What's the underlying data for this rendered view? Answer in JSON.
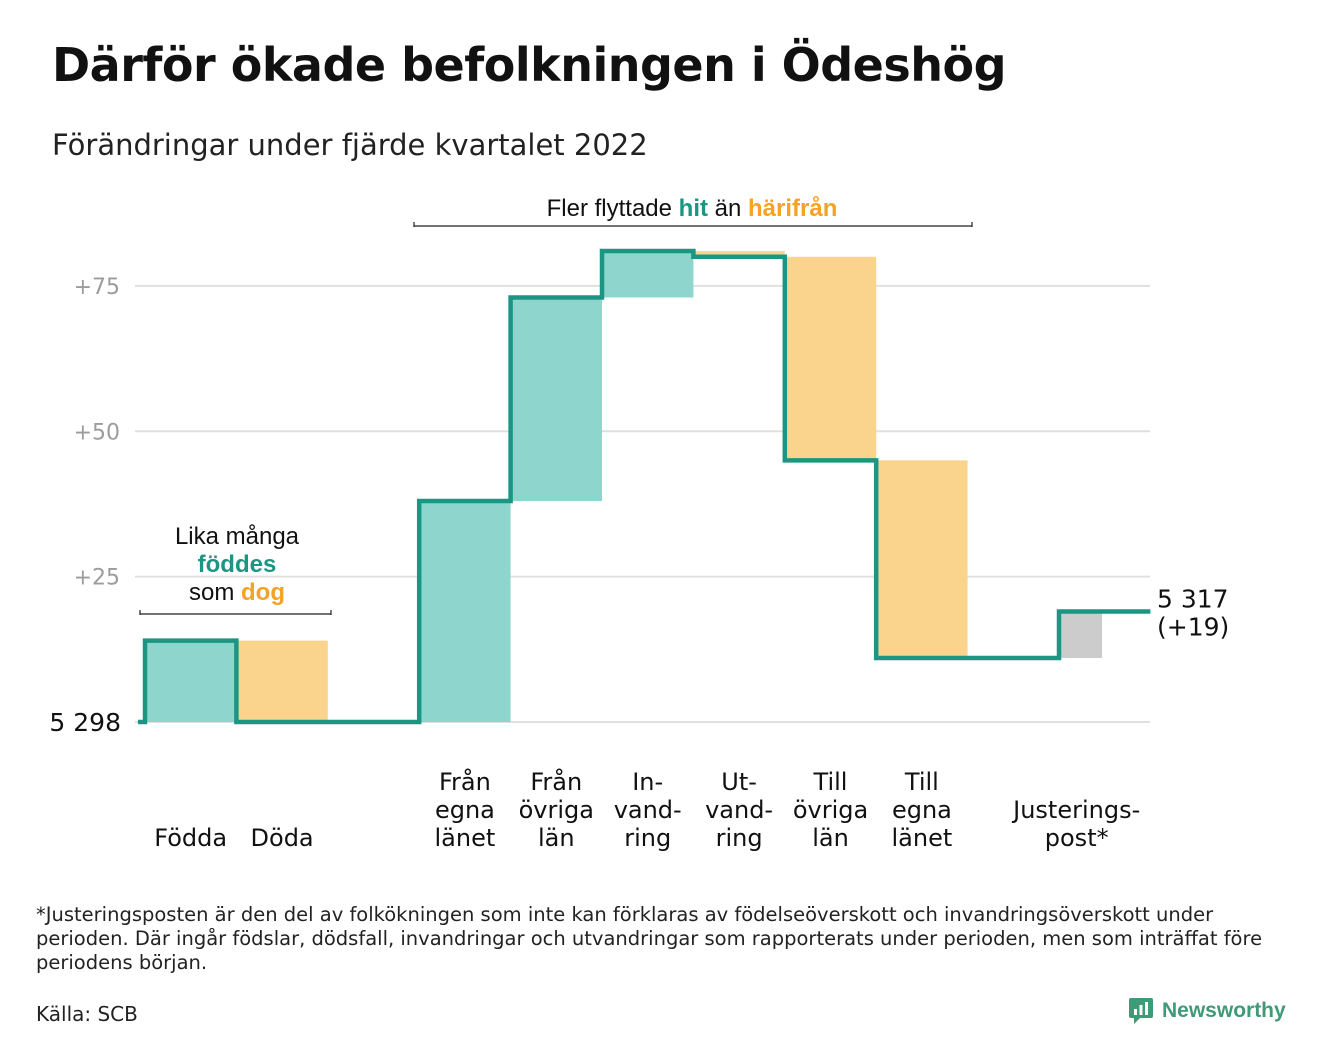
{
  "title": "Därför ökade befolkningen i Ödeshög",
  "subtitle": "Förändringar under fjärde kvartalet 2022",
  "colors": {
    "in": "#8ed6cd",
    "out": "#fad48c",
    "adjust": "#cccccc",
    "line": "#1a9683",
    "accent_in": "#1a9683",
    "accent_out": "#f4a324",
    "grid": "#e0e0e0",
    "tick_text": "#9c9c9c"
  },
  "chart_data": {
    "type": "waterfall",
    "start_value": 5298,
    "start_label": "5 298",
    "end_value": 5317,
    "end_label": "5 317",
    "end_change_label": "(+19)",
    "y_ticks": [
      {
        "value": 25,
        "label": "+25"
      },
      {
        "value": 50,
        "label": "+50"
      },
      {
        "value": 75,
        "label": "+75"
      }
    ],
    "ylim": [
      0,
      90
    ],
    "grid": true,
    "steps": [
      {
        "label_lines": [
          "Födda"
        ],
        "change": 14,
        "kind": "in"
      },
      {
        "label_lines": [
          "Döda"
        ],
        "change": -14,
        "kind": "out"
      },
      {
        "label_lines": [],
        "change": 0,
        "kind": "gap"
      },
      {
        "label_lines": [
          "Från",
          "egna",
          "länet"
        ],
        "change": 38,
        "kind": "in"
      },
      {
        "label_lines": [
          "Från",
          "övriga",
          "län"
        ],
        "change": 35,
        "kind": "in"
      },
      {
        "label_lines": [
          "In-",
          "vand-",
          "ring"
        ],
        "change": 8,
        "kind": "in"
      },
      {
        "label_lines": [
          "Ut-",
          "vand-",
          "ring"
        ],
        "change": -1,
        "kind": "out"
      },
      {
        "label_lines": [
          "Till",
          "övriga",
          "län"
        ],
        "change": -35,
        "kind": "out"
      },
      {
        "label_lines": [
          "Till",
          "egna",
          "länet"
        ],
        "change": -34,
        "kind": "out"
      },
      {
        "label_lines": [],
        "change": 0,
        "kind": "gap"
      },
      {
        "label_lines": [
          "Justerings-",
          "post*"
        ],
        "change": 8,
        "kind": "adjust"
      }
    ],
    "annotations": [
      {
        "id": "births",
        "lines": [
          [
            {
              "text": "Lika många",
              "style": "plain"
            }
          ],
          [
            {
              "text": "föddes",
              "style": "in"
            }
          ],
          [
            {
              "text": "som ",
              "style": "plain"
            },
            {
              "text": "dog",
              "style": "out"
            }
          ]
        ]
      },
      {
        "id": "moves",
        "lines": [
          [
            {
              "text": "Fler flyttade ",
              "style": "plain"
            },
            {
              "text": "hit",
              "style": "in"
            },
            {
              "text": " än ",
              "style": "plain"
            },
            {
              "text": "härifrån",
              "style": "out"
            }
          ]
        ]
      }
    ]
  },
  "footnote": "*Justeringsposten är den del av folkökningen som inte kan förklaras av födelseöverskott och invandringsöverskott under perioden. Där ingår födslar, dödsfall, invandringar och utvandringar som rapporterats under perioden, men som inträffat före periodens början.",
  "source": "Källa: SCB",
  "brand": {
    "name": "Newsworthy",
    "icon": "newsworthy-logo-icon"
  }
}
